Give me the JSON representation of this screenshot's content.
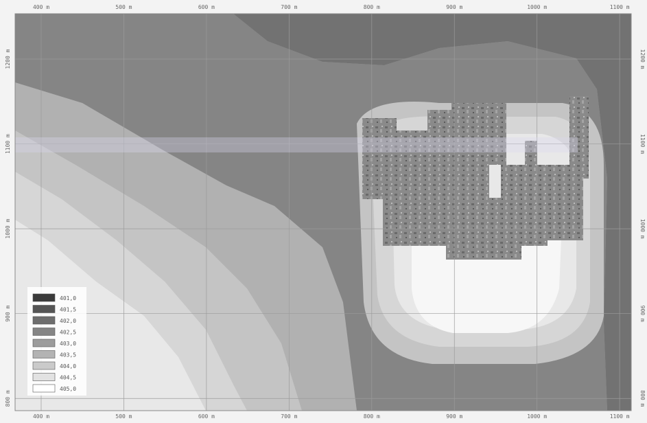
{
  "map": {
    "x_ticks": [
      {
        "label": "400 m",
        "value": 400
      },
      {
        "label": "500 m",
        "value": 500
      },
      {
        "label": "600 m",
        "value": 600
      },
      {
        "label": "700 m",
        "value": 700
      },
      {
        "label": "800 m",
        "value": 800
      },
      {
        "label": "900 m",
        "value": 900
      },
      {
        "label": "1000 m",
        "value": 1000
      },
      {
        "label": "1100 m",
        "value": 1100
      }
    ],
    "y_ticks": [
      {
        "label": "1200 m",
        "value": 1200
      },
      {
        "label": "1100 m",
        "value": 1100
      },
      {
        "label": "1000 m",
        "value": 1000
      },
      {
        "label": "900 m",
        "value": 900
      },
      {
        "label": "800 m",
        "value": 800
      }
    ],
    "contour_colors": {
      "c401": "#5f5f5f",
      "c4015": "#727272",
      "c402": "#858585",
      "c4025": "#9a9a9a",
      "c403": "#b1b1b1",
      "c4035": "#c4c4c4",
      "c404": "#d6d6d6",
      "c4045": "#e8e8e8",
      "c405": "#f7f7f7"
    }
  },
  "legend": {
    "items": [
      {
        "label": "401,0",
        "color": "#3a3a3a"
      },
      {
        "label": "401,5",
        "color": "#555555"
      },
      {
        "label": "402,0",
        "color": "#6e6e6e"
      },
      {
        "label": "402,5",
        "color": "#858585"
      },
      {
        "label": "403,0",
        "color": "#9c9c9c"
      },
      {
        "label": "403,5",
        "color": "#b3b3b3"
      },
      {
        "label": "404,0",
        "color": "#cacaca"
      },
      {
        "label": "404,5",
        "color": "#e2e2e2"
      },
      {
        "label": "405,0",
        "color": "#ffffff"
      }
    ]
  }
}
